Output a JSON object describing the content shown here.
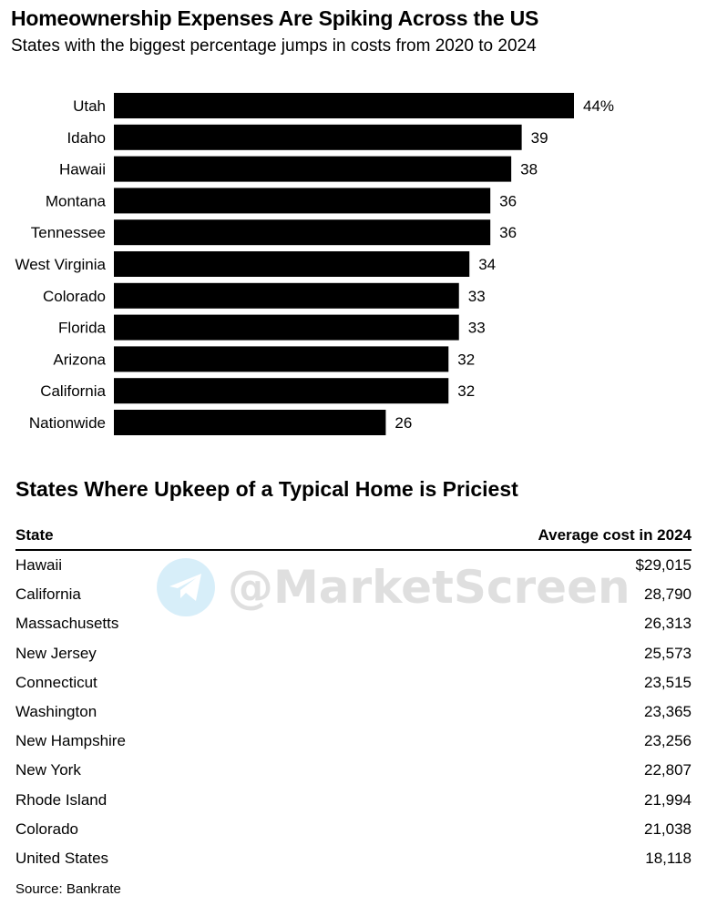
{
  "chart_data": {
    "type": "bar",
    "orientation": "horizontal",
    "title": "Homeownership Expenses Are Spiking Across the US",
    "subtitle": "States with the biggest percentage jumps in costs from 2020 to 2024",
    "categories": [
      "Utah",
      "Idaho",
      "Hawaii",
      "Montana",
      "Tennessee",
      "West Virginia",
      "Colorado",
      "Florida",
      "Arizona",
      "California",
      "Nationwide"
    ],
    "values": [
      44,
      39,
      38,
      36,
      36,
      34,
      33,
      33,
      32,
      32,
      26
    ],
    "value_labels": [
      "44%",
      "39",
      "38",
      "36",
      "36",
      "34",
      "33",
      "33",
      "32",
      "32",
      "26"
    ],
    "bar_color": "#000000",
    "xlim": [
      0,
      44
    ],
    "grid": false,
    "legend": "none"
  },
  "table": {
    "title": "States Where Upkeep of a Typical Home is Priciest",
    "col_state": "State",
    "col_cost": "Average cost in 2024",
    "rows": [
      {
        "state": "Hawaii",
        "cost": "$29,015"
      },
      {
        "state": "California",
        "cost": "28,790"
      },
      {
        "state": "Massachusetts",
        "cost": "26,313"
      },
      {
        "state": "New Jersey",
        "cost": "25,573"
      },
      {
        "state": "Connecticut",
        "cost": "23,515"
      },
      {
        "state": "Washington",
        "cost": "23,365"
      },
      {
        "state": "New Hampshire",
        "cost": "23,256"
      },
      {
        "state": "New York",
        "cost": "22,807"
      },
      {
        "state": "Rhode Island",
        "cost": "21,994"
      },
      {
        "state": "Colorado",
        "cost": "21,038"
      },
      {
        "state": "United States",
        "cost": "18,118"
      }
    ]
  },
  "source": "Source: Bankrate",
  "watermark": {
    "text": "@MarketScreen",
    "icon": "telegram-icon",
    "color": "#2aa3e0"
  }
}
